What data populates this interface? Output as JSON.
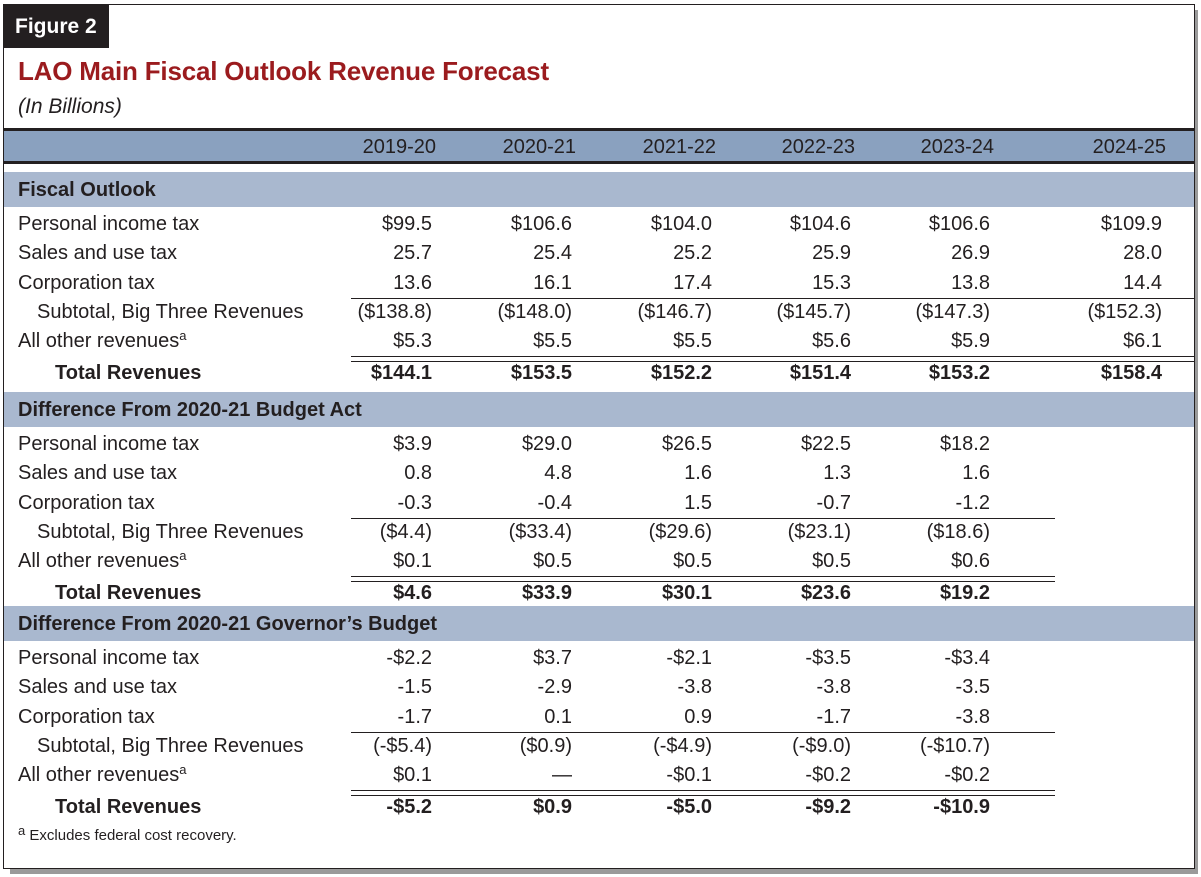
{
  "figure_label": "Figure 2",
  "title": "LAO Main Fiscal Outlook Revenue Forecast",
  "subtitle": "(In Billions)",
  "columns": [
    "2019-20",
    "2020-21",
    "2021-22",
    "2022-23",
    "2023-24",
    "2024-25"
  ],
  "sections": [
    {
      "title": "Fiscal Outlook",
      "rows": [
        {
          "label": "Personal income tax",
          "values": [
            "$99.5",
            "$106.6",
            "$104.0",
            "$104.6",
            "$106.6",
            "$109.9"
          ]
        },
        {
          "label": "Sales and use tax",
          "values": [
            "25.7",
            "25.4",
            "25.2",
            "25.9",
            "26.9",
            "28.0"
          ]
        },
        {
          "label": "Corporation tax",
          "values": [
            "13.6",
            "16.1",
            "17.4",
            "15.3",
            "13.8",
            "14.4"
          ]
        },
        {
          "label": "Subtotal, Big Three Revenues",
          "values": [
            "($138.8)",
            "($148.0)",
            "($146.7)",
            "($145.7)",
            "($147.3)",
            "($152.3)"
          ]
        },
        {
          "label": "All other revenues",
          "footnote_marker": "a",
          "values": [
            "$5.3",
            "$5.5",
            "$5.5",
            "$5.6",
            "$5.9",
            "$6.1"
          ]
        },
        {
          "label": "Total Revenues",
          "values": [
            "$144.1",
            "$153.5",
            "$152.2",
            "$151.4",
            "$153.2",
            "$158.4"
          ]
        }
      ]
    },
    {
      "title": "Difference From 2020-21 Budget Act",
      "rows": [
        {
          "label": "Personal income tax",
          "values": [
            "$3.9",
            "$29.0",
            "$26.5",
            "$22.5",
            "$18.2"
          ]
        },
        {
          "label": "Sales and use tax",
          "values": [
            "0.8",
            "4.8",
            "1.6",
            "1.3",
            "1.6"
          ]
        },
        {
          "label": "Corporation tax",
          "values": [
            "-0.3",
            "-0.4",
            "1.5",
            "-0.7",
            "-1.2"
          ]
        },
        {
          "label": "Subtotal, Big Three Revenues",
          "values": [
            "($4.4)",
            "($33.4)",
            "($29.6)",
            "($23.1)",
            "($18.6)"
          ]
        },
        {
          "label": "All other revenues",
          "footnote_marker": "a",
          "values": [
            "$0.1",
            "$0.5",
            "$0.5",
            "$0.5",
            "$0.6"
          ]
        },
        {
          "label": "Total Revenues",
          "values": [
            "$4.6",
            "$33.9",
            "$30.1",
            "$23.6",
            "$19.2"
          ]
        }
      ]
    },
    {
      "title": "Difference From 2020-21 Governor’s Budget",
      "rows": [
        {
          "label": "Personal income tax",
          "values": [
            "-$2.2",
            "$3.7",
            "-$2.1",
            "-$3.5",
            "-$3.4"
          ]
        },
        {
          "label": "Sales and use tax",
          "values": [
            "-1.5",
            "-2.9",
            "-3.8",
            "-3.8",
            "-3.5"
          ]
        },
        {
          "label": "Corporation tax",
          "values": [
            "-1.7",
            "0.1",
            "0.9",
            "-1.7",
            "-3.8"
          ]
        },
        {
          "label": "Subtotal, Big Three Revenues",
          "values": [
            "(-$5.4)",
            "($0.9)",
            "(-$4.9)",
            "(-$9.0)",
            "(-$10.7)"
          ]
        },
        {
          "label": "All other revenues",
          "footnote_marker": "a",
          "values": [
            "$0.1",
            "—",
            "-$0.1",
            "-$0.2",
            "-$0.2"
          ]
        },
        {
          "label": "Total Revenues",
          "values": [
            "-$5.2",
            "$0.9",
            "-$5.0",
            "-$9.2",
            "-$10.9"
          ]
        }
      ]
    }
  ],
  "footnote": {
    "marker": "a",
    "text": "Excludes federal cost recovery."
  },
  "colors": {
    "title": "#9b1b1e",
    "header_band": "#8aa1bf",
    "section_band": "#a9b8cf",
    "label_bg": "#231f20"
  }
}
